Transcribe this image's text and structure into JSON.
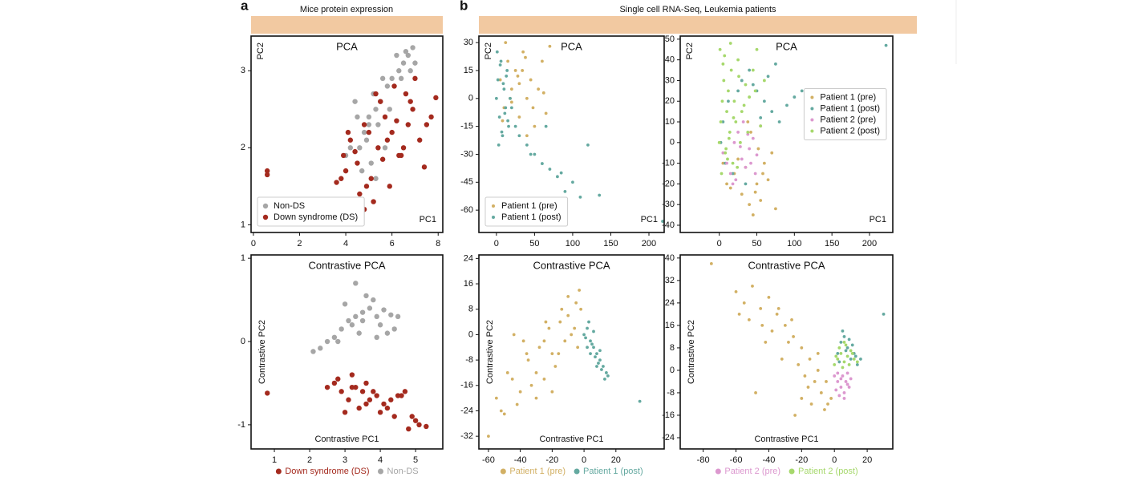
{
  "figure": {
    "panels": [
      {
        "label": "a",
        "title": "Mice protein expression"
      },
      {
        "label": "b",
        "title": "Single cell RNA-Seq, Leukemia patients"
      }
    ]
  },
  "chart_data": [
    {
      "type": "scatter",
      "title": "PCA",
      "xlabel": "PC1",
      "ylabel": "PC2",
      "xlim": [
        -0.1,
        8.2
      ],
      "ylim": [
        0.9,
        3.45
      ],
      "xticks": [
        0,
        2,
        4,
        6,
        8
      ],
      "yticks": [
        1,
        2,
        3
      ],
      "legend": "lower left",
      "series": [
        {
          "name": "Non-DS",
          "color": "#a6a6a6",
          "x": [
            6.9,
            6.7,
            6.5,
            6.3,
            6.0,
            5.8,
            5.5,
            5.3,
            5.0,
            4.8,
            4.6,
            4.5,
            5.2,
            5.6,
            6.2,
            6.6,
            7.0,
            5.9,
            5.4,
            4.9,
            4.2,
            4.0,
            5.1,
            5.7,
            6.4,
            4.7,
            5.3,
            6.8,
            5.0,
            4.4
          ],
          "values": [
            3.3,
            3.2,
            3.1,
            3.0,
            2.9,
            2.8,
            2.6,
            2.5,
            2.3,
            2.2,
            2.0,
            2.4,
            2.7,
            2.9,
            3.2,
            3.25,
            3.1,
            2.5,
            2.3,
            2.1,
            2.0,
            1.9,
            1.8,
            2.0,
            2.9,
            1.7,
            1.6,
            3.0,
            2.4,
            2.6
          ]
        },
        {
          "name": "Down syndrome (DS)",
          "color": "#a42a1e",
          "x": [
            0.6,
            0.6,
            3.6,
            3.9,
            4.2,
            4.5,
            4.8,
            5.1,
            5.4,
            5.7,
            6.0,
            6.3,
            6.6,
            6.9,
            7.2,
            7.5,
            7.9,
            4.0,
            4.4,
            5.0,
            5.5,
            6.1,
            6.8,
            7.4,
            4.6,
            5.2,
            5.9,
            6.5,
            7.0,
            3.8,
            4.9,
            5.6,
            6.2,
            4.1,
            5.3,
            6.7,
            7.7,
            4.8,
            5.8,
            6.4
          ],
          "values": [
            1.7,
            1.65,
            1.55,
            1.9,
            2.1,
            1.8,
            2.3,
            1.6,
            2.0,
            2.4,
            2.2,
            1.9,
            2.7,
            2.5,
            2.1,
            2.3,
            2.65,
            1.7,
            1.95,
            2.2,
            2.6,
            2.8,
            2.6,
            1.75,
            1.4,
            1.3,
            1.5,
            2.0,
            2.9,
            1.6,
            1.5,
            1.85,
            2.35,
            2.2,
            2.7,
            2.3,
            2.4,
            1.2,
            2.1,
            1.9
          ]
        }
      ]
    },
    {
      "type": "scatter",
      "title": "Contrastive PCA",
      "xlabel": "Contrastive PC1",
      "ylabel": "Contrastive PC2",
      "xlim": [
        0.34,
        5.77
      ],
      "ylim": [
        -1.29,
        1.04
      ],
      "xticks": [
        1,
        2,
        3,
        4,
        5
      ],
      "yticks": [
        -1,
        0,
        1
      ],
      "legend": "below",
      "series": [
        {
          "name": "Down syndrome (DS)",
          "color": "#a42a1e",
          "x": [
            0.8,
            2.5,
            2.7,
            2.9,
            3.1,
            3.3,
            3.5,
            3.7,
            3.9,
            4.1,
            4.3,
            4.5,
            4.7,
            4.9,
            5.1,
            5.3,
            3.0,
            3.2,
            3.4,
            3.6,
            3.8,
            4.0,
            4.2,
            4.4,
            4.6,
            2.8,
            3.6,
            4.8,
            5.0,
            3.2
          ],
          "values": [
            -0.62,
            -0.55,
            -0.5,
            -0.6,
            -0.7,
            -0.55,
            -0.6,
            -0.7,
            -0.65,
            -0.75,
            -0.7,
            -0.65,
            -0.6,
            -0.9,
            -1.0,
            -1.02,
            -0.85,
            -0.4,
            -0.8,
            -0.75,
            -0.6,
            -0.85,
            -0.8,
            -0.9,
            -0.65,
            -0.45,
            -0.5,
            -1.05,
            -0.95,
            -0.55
          ]
        },
        {
          "name": "Non-DS",
          "color": "#a6a6a6",
          "x": [
            2.1,
            2.3,
            2.5,
            2.7,
            2.9,
            3.1,
            3.3,
            3.5,
            3.7,
            3.9,
            4.1,
            4.3,
            4.5,
            3.0,
            3.2,
            3.4,
            3.6,
            3.8,
            4.0,
            4.2,
            2.8,
            3.3,
            3.9,
            3.5,
            4.4
          ],
          "values": [
            -0.12,
            -0.08,
            0.0,
            0.05,
            0.15,
            0.25,
            0.3,
            0.35,
            0.4,
            0.3,
            0.38,
            0.32,
            0.3,
            0.45,
            0.2,
            0.1,
            0.55,
            0.5,
            0.2,
            0.1,
            0.0,
            0.7,
            0.05,
            0.25,
            0.15
          ]
        }
      ]
    },
    {
      "type": "scatter",
      "title": "PCA",
      "xlabel": "PC1",
      "ylabel": "PC2",
      "xlim": [
        -23,
        220
      ],
      "ylim": [
        -72,
        33.5
      ],
      "xticks": [
        0,
        50,
        100,
        150,
        200
      ],
      "yticks": [
        30,
        15,
        0,
        -15,
        -30,
        -45,
        -60
      ],
      "legend": "lower left",
      "series": [
        {
          "name": "Patient 1 (pre)",
          "color": "#d2b064",
          "x": [
            5,
            10,
            15,
            20,
            25,
            30,
            35,
            40,
            45,
            50,
            55,
            60,
            65,
            70,
            20,
            30,
            40,
            12,
            28,
            38,
            48,
            62,
            8,
            18,
            34
          ],
          "values": [
            10,
            -5,
            20,
            5,
            15,
            -10,
            25,
            0,
            10,
            -15,
            5,
            20,
            -8,
            28,
            -2,
            8,
            -20,
            30,
            12,
            22,
            -5,
            3,
            -12,
            0,
            15
          ]
        },
        {
          "name": "Patient 1 (post)",
          "color": "#64a9a0",
          "x": [
            0,
            2,
            4,
            6,
            8,
            10,
            12,
            14,
            16,
            18,
            1,
            3,
            5,
            7,
            9,
            11,
            13,
            15,
            20,
            25,
            30,
            40,
            50,
            60,
            70,
            80,
            90,
            100,
            110,
            120,
            135,
            65,
            85,
            45,
            218
          ],
          "values": [
            0,
            10,
            -10,
            20,
            -20,
            5,
            -5,
            15,
            -15,
            0,
            25,
            -25,
            18,
            -18,
            8,
            -8,
            12,
            -12,
            -5,
            -15,
            -20,
            -25,
            -30,
            -35,
            -38,
            -42,
            -50,
            -45,
            -53,
            -25,
            -52,
            -15,
            -40,
            -30,
            -66
          ]
        }
      ]
    },
    {
      "type": "scatter",
      "title": "PCA",
      "xlabel": "PC1",
      "ylabel": "PC2",
      "xlim": [
        -52,
        231
      ],
      "ylim": [
        -43.5,
        51.5
      ],
      "xticks": [
        0,
        50,
        100,
        150,
        200
      ],
      "yticks": [
        50,
        40,
        30,
        20,
        10,
        0,
        -10,
        -20,
        -30,
        -40
      ],
      "legend": "center right",
      "series": [
        {
          "name": "Patient 1 (pre)",
          "color": "#d2b064",
          "x": [
            5,
            10,
            20,
            30,
            40,
            50,
            60,
            70,
            35,
            45,
            55,
            25,
            15,
            65,
            75,
            42,
            52,
            48,
            38,
            58
          ],
          "values": [
            -10,
            -20,
            -15,
            -25,
            -30,
            -20,
            -10,
            -5,
            -12,
            -35,
            -28,
            -8,
            -22,
            -18,
            -32,
            5,
            -3,
            -24,
            10,
            -15
          ]
        },
        {
          "name": "Patient 1 (post)",
          "color": "#64a9a0",
          "x": [
            2,
            5,
            8,
            12,
            18,
            25,
            30,
            40,
            50,
            60,
            70,
            80,
            90,
            100,
            110,
            120,
            35,
            45,
            55,
            65,
            75,
            222
          ],
          "values": [
            0,
            10,
            -10,
            20,
            -15,
            25,
            30,
            35,
            25,
            20,
            15,
            10,
            18,
            22,
            25,
            20,
            -20,
            28,
            12,
            32,
            38,
            47
          ]
        },
        {
          "name": "Patient 2 (pre)",
          "color": "#dc98cf",
          "x": [
            5,
            10,
            15,
            20,
            25,
            30,
            35,
            40,
            45,
            50,
            55,
            22,
            28,
            38,
            42,
            48,
            18,
            32
          ],
          "values": [
            -5,
            -10,
            -15,
            0,
            5,
            -8,
            -12,
            -3,
            2,
            -6,
            8,
            -18,
            -2,
            4,
            -10,
            -15,
            -20,
            10
          ]
        },
        {
          "name": "Patient 2 (post)",
          "color": "#a6d86c",
          "x": [
            0,
            2,
            4,
            6,
            8,
            10,
            12,
            14,
            16,
            18,
            20,
            22,
            25,
            28,
            30,
            35,
            40,
            45,
            50,
            55,
            60,
            3,
            7,
            11,
            15,
            19,
            24,
            33,
            38,
            48,
            26,
            13,
            9,
            5,
            1
          ],
          "values": [
            0,
            10,
            20,
            30,
            -5,
            15,
            25,
            5,
            35,
            -10,
            20,
            10,
            40,
            0,
            15,
            28,
            22,
            35,
            45,
            8,
            30,
            -15,
            42,
            -8,
            48,
            12,
            -12,
            18,
            5,
            25,
            32,
            2,
            -3,
            38,
            45
          ]
        }
      ]
    },
    {
      "type": "scatter",
      "title": "Contrastive PCA",
      "xlabel": "Contrastive PC1",
      "ylabel": "Contrastive PC2",
      "xlim": [
        -66,
        50.3
      ],
      "ylim": [
        -36,
        25.1
      ],
      "xticks": [
        -60,
        -40,
        -20,
        0,
        20
      ],
      "yticks": [
        24,
        16,
        8,
        0,
        -8,
        -16,
        -24,
        -32
      ],
      "legend": "below",
      "series": [
        {
          "name": "Patient 1 (pre)",
          "color": "#d2b064",
          "x": [
            -60,
            -55,
            -50,
            -45,
            -40,
            -35,
            -30,
            -25,
            -20,
            -15,
            -10,
            -5,
            -8,
            -12,
            -18,
            -22,
            -28,
            -33,
            -38,
            -42,
            -48,
            -3,
            -6,
            -14,
            -25,
            -30,
            -20,
            -10,
            -2,
            -16,
            -52,
            -44,
            -36,
            -24,
            -4
          ],
          "values": [
            -32,
            -20,
            -25,
            -14,
            -18,
            -8,
            -12,
            -2,
            -6,
            4,
            6,
            10,
            0,
            -2,
            -10,
            2,
            -4,
            -16,
            -2,
            -22,
            -12,
            14,
            2,
            8,
            -14,
            -20,
            -18,
            12,
            8,
            -6,
            -24,
            0,
            -6,
            4,
            -4
          ]
        },
        {
          "name": "Patient 1 (post)",
          "color": "#64a9a0",
          "x": [
            0,
            2,
            4,
            6,
            8,
            10,
            12,
            14,
            3,
            5,
            7,
            9,
            11,
            13,
            1,
            6,
            10,
            15,
            4,
            8,
            2,
            35
          ],
          "values": [
            0,
            2,
            -2,
            -4,
            -6,
            -8,
            -10,
            -12,
            4,
            -3,
            -7,
            -9,
            -11,
            -14,
            -1,
            1,
            -5,
            -13,
            -6,
            -10,
            -4,
            -21
          ]
        }
      ]
    },
    {
      "type": "scatter",
      "title": "Contrastive PCA",
      "xlabel": "Contrastive PC1",
      "ylabel": "Contrastive PC2",
      "xlim": [
        -94,
        35.6
      ],
      "ylim": [
        -28,
        41.1
      ],
      "xticks": [
        -80,
        -60,
        -40,
        -20,
        0,
        20
      ],
      "yticks": [
        40,
        32,
        24,
        16,
        8,
        0,
        -8,
        -16,
        -24
      ],
      "legend": "below",
      "series": [
        {
          "color": "#d2b064",
          "x": [
            -75,
            -60,
            -55,
            -50,
            -45,
            -40,
            -35,
            -30,
            -25,
            -20,
            -15,
            -10,
            -5,
            -2,
            -38,
            -28,
            -18,
            -8,
            -42,
            -32,
            -22,
            -12,
            -4,
            -48,
            -58,
            -34,
            -26,
            -16,
            -6,
            -14,
            -24,
            -10,
            -20,
            -44,
            -52
          ],
          "values": [
            38,
            28,
            24,
            30,
            22,
            26,
            20,
            16,
            12,
            8,
            4,
            0,
            -4,
            -10,
            14,
            10,
            -2,
            -8,
            10,
            4,
            2,
            -4,
            -12,
            -8,
            20,
            22,
            18,
            -6,
            -14,
            -12,
            -16,
            6,
            -10,
            16,
            18
          ]
        },
        {
          "color": "#64a9a0",
          "x": [
            2,
            4,
            6,
            8,
            10,
            12,
            14,
            5,
            9,
            3,
            7,
            11,
            13,
            16,
            30
          ],
          "values": [
            6,
            10,
            12,
            8,
            4,
            6,
            2,
            14,
            11,
            3,
            7,
            9,
            5,
            4,
            20
          ]
        },
        {
          "name": "Patient 2 (pre)",
          "color": "#dc98cf",
          "x": [
            0,
            2,
            4,
            6,
            8,
            10,
            1,
            3,
            5,
            7,
            9,
            2,
            6,
            8,
            4
          ],
          "values": [
            -2,
            -4,
            -6,
            -8,
            -5,
            -3,
            -7,
            -9,
            -2,
            -4,
            -6,
            -1,
            -10,
            -1,
            -3
          ]
        },
        {
          "name": "Patient 2 (post)",
          "color": "#a6d86c",
          "x": [
            0,
            2,
            4,
            6,
            8,
            10,
            12,
            3,
            5,
            7,
            9,
            11,
            1,
            6,
            14
          ],
          "values": [
            2,
            4,
            6,
            3,
            5,
            7,
            4,
            8,
            1,
            9,
            2,
            6,
            5,
            10,
            3
          ]
        }
      ]
    }
  ]
}
